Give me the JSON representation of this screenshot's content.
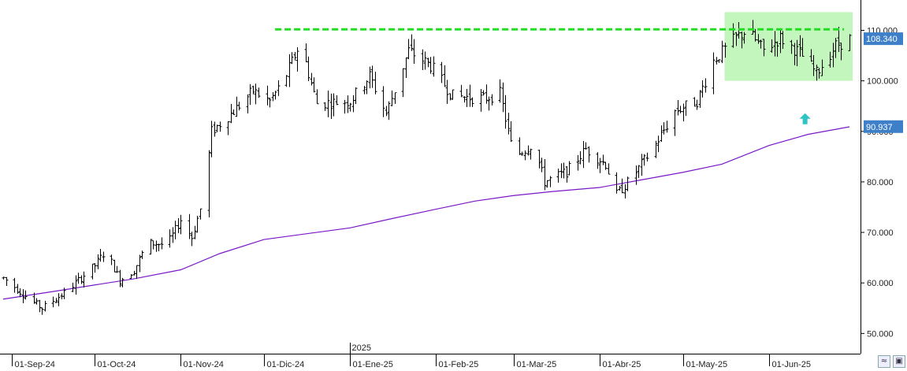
{
  "chart_data": {
    "type": "bar",
    "subtype": "ohlc-bars",
    "x_ticks": [
      "01-Sep-24",
      "01-Oct-24",
      "01-Nov-24",
      "01-Dic-24",
      "01-Ene-25",
      "01-Feb-25",
      "01-Mar-25",
      "01-Abr-25",
      "01-May-25",
      "01-Jun-25"
    ],
    "year_marker": "2025",
    "y_ticks": [
      "50.000",
      "60.000",
      "70.000",
      "80.000",
      "90.000",
      "100.000",
      "110.000"
    ],
    "ylim": [
      46,
      116
    ],
    "grid": false,
    "colors": {
      "bars": "#000000",
      "moving_average": "#7a18c8",
      "resistance_line": "#22dd22",
      "range_box": "#b9f5b0",
      "last_price_tag": "#3d7fc9",
      "ma_price_tag": "#3d7fc9",
      "arrow": "#2ec4c4"
    },
    "last_price": "108.340",
    "ma_price": "90.937",
    "resistance_level": 110.2,
    "range_box": {
      "start": "2025-05-16",
      "end": "2025-06-30",
      "low": 100.0,
      "high": 113.6
    },
    "arrow_marker": {
      "date": "2025-06-14",
      "value": 92.5,
      "direction": "up"
    },
    "moving_average": [
      [
        "2024-08-29",
        56.8
      ],
      [
        "2024-09-16",
        58.3
      ],
      [
        "2024-10-01",
        59.6
      ],
      [
        "2024-10-15",
        60.8
      ],
      [
        "2024-11-01",
        62.6
      ],
      [
        "2024-11-15",
        65.8
      ],
      [
        "2024-12-01",
        68.6
      ],
      [
        "2025-01-01",
        70.9
      ],
      [
        "2025-01-15",
        72.6
      ],
      [
        "2025-02-01",
        74.6
      ],
      [
        "2025-02-15",
        76.2
      ],
      [
        "2025-03-01",
        77.3
      ],
      [
        "2025-03-15",
        78.1
      ],
      [
        "2025-04-01",
        78.9
      ],
      [
        "2025-04-15",
        80.3
      ],
      [
        "2025-05-01",
        81.9
      ],
      [
        "2025-05-15",
        83.5
      ],
      [
        "2025-06-01",
        87.2
      ],
      [
        "2025-06-15",
        89.4
      ],
      [
        "2025-06-30",
        90.9
      ]
    ],
    "price_path": [
      [
        "2024-08-29",
        61.0
      ],
      [
        "2024-09-08",
        56.5
      ],
      [
        "2024-09-12",
        55.0
      ],
      [
        "2024-09-20",
        58.0
      ],
      [
        "2024-10-01",
        63.5
      ],
      [
        "2024-10-05",
        66.5
      ],
      [
        "2024-10-10",
        60.5
      ],
      [
        "2024-10-15",
        62.5
      ],
      [
        "2024-10-20",
        68.0
      ],
      [
        "2024-10-27",
        67.5
      ],
      [
        "2024-11-01",
        72.5
      ],
      [
        "2024-11-05",
        69.0
      ],
      [
        "2024-11-09",
        76.5
      ],
      [
        "2024-11-12",
        90.0
      ],
      [
        "2024-11-20",
        94.0
      ],
      [
        "2024-11-27",
        98.0
      ],
      [
        "2024-12-03",
        96.0
      ],
      [
        "2024-12-08",
        100.0
      ],
      [
        "2024-12-14",
        107.5
      ],
      [
        "2024-12-20",
        95.5
      ],
      [
        "2025-01-01",
        96.0
      ],
      [
        "2025-01-08",
        101.0
      ],
      [
        "2025-01-14",
        93.5
      ],
      [
        "2025-01-22",
        106.0
      ],
      [
        "2025-01-30",
        103.0
      ],
      [
        "2025-02-07",
        97.0
      ],
      [
        "2025-02-18",
        96.5
      ],
      [
        "2025-02-24",
        97.5
      ],
      [
        "2025-03-01",
        85.0
      ],
      [
        "2025-03-08",
        87.5
      ],
      [
        "2025-03-12",
        80.0
      ],
      [
        "2025-03-20",
        82.0
      ],
      [
        "2025-03-27",
        86.5
      ],
      [
        "2025-04-03",
        83.5
      ],
      [
        "2025-04-07",
        77.5
      ],
      [
        "2025-04-12",
        80.5
      ],
      [
        "2025-04-20",
        86.5
      ],
      [
        "2025-04-28",
        94.0
      ],
      [
        "2025-05-06",
        96.0
      ],
      [
        "2025-05-12",
        104.0
      ],
      [
        "2025-05-20",
        108.5
      ],
      [
        "2025-05-24",
        110.0
      ],
      [
        "2025-05-30",
        106.0
      ],
      [
        "2025-06-05",
        108.5
      ],
      [
        "2025-06-12",
        105.5
      ],
      [
        "2025-06-18",
        101.5
      ],
      [
        "2025-06-25",
        107.0
      ],
      [
        "2025-06-30",
        108.3
      ]
    ]
  }
}
